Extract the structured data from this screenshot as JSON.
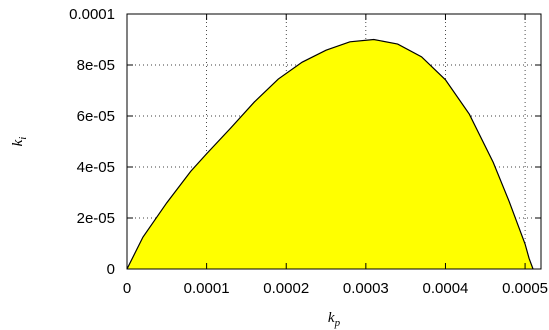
{
  "chart_data": {
    "type": "area",
    "title": "",
    "xlabel": {
      "base": "k",
      "sub": "p"
    },
    "ylabel": {
      "base": "k",
      "sub": "i"
    },
    "xlim": [
      0,
      0.00052
    ],
    "ylim": [
      0,
      0.0001
    ],
    "xticks": [
      0,
      0.0001,
      0.0002,
      0.0003,
      0.0004,
      0.0005
    ],
    "xtick_labels": [
      "0",
      "0.0001",
      "0.0002",
      "0.0003",
      "0.0004",
      "0.0005"
    ],
    "yticks": [
      0,
      2e-05,
      4e-05,
      6e-05,
      8e-05,
      0.0001
    ],
    "ytick_labels": [
      "0",
      "2e-05",
      "4e-05",
      "6e-05",
      "8e-05",
      "0.0001"
    ],
    "grid": true,
    "series": [
      {
        "fill_color": "#ffff00",
        "line_color": "#000000",
        "x": [
          0,
          2e-05,
          5e-05,
          8e-05,
          0.0001,
          0.00013,
          0.00016,
          0.00019,
          0.00022,
          0.00025,
          0.00028,
          0.00031,
          0.00034,
          0.00037,
          0.0004,
          0.00043,
          0.00046,
          0.00048,
          0.0005,
          0.000505,
          0.00051
        ],
        "y": [
          0,
          1.25e-05,
          2.6e-05,
          3.83e-05,
          4.52e-05,
          5.52e-05,
          6.55e-05,
          7.45e-05,
          8.11e-05,
          8.58e-05,
          8.91e-05,
          9e-05,
          8.82e-05,
          8.32e-05,
          7.42e-05,
          6.07e-05,
          4.18e-05,
          2.65e-05,
          9.8e-06,
          4.2e-06,
          0
        ]
      }
    ]
  }
}
